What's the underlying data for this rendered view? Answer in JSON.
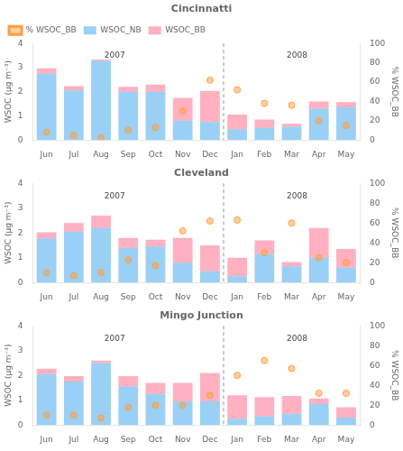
{
  "chart_data": [
    {
      "type": "bar",
      "title": "Cincinnatti",
      "stacked": true,
      "grid": false,
      "legend": "upper left",
      "categories": [
        "Jun",
        "Jul",
        "Aug",
        "Sep",
        "Oct",
        "Nov",
        "Dec",
        "Jan",
        "Feb",
        "Mar",
        "Apr",
        "May"
      ],
      "y_label": "WSOC (μg m⁻³)",
      "y2_label": "% WSOC_BB",
      "ylim": [
        0,
        4
      ],
      "yticks": [
        0,
        1,
        2,
        3,
        4
      ],
      "y2lim": [
        0,
        100
      ],
      "y2ticks": [
        0,
        20,
        40,
        60,
        80,
        100
      ],
      "series": [
        {
          "name": "WSOC_NB",
          "type": "bar",
          "values": [
            2.75,
            2.05,
            3.28,
            2.0,
            2.0,
            0.8,
            0.75,
            0.45,
            0.5,
            0.55,
            1.3,
            1.35
          ]
        },
        {
          "name": "WSOC_BB",
          "type": "bar",
          "values": [
            0.22,
            0.18,
            0.05,
            0.2,
            0.3,
            0.95,
            1.28,
            0.6,
            0.35,
            0.12,
            0.3,
            0.22
          ]
        },
        {
          "name": "% WSOC_BB",
          "type": "scatter",
          "axis": "y2",
          "marker": "circle",
          "values": [
            8,
            5,
            2,
            10,
            13,
            30,
            62,
            52,
            38,
            36,
            20,
            15
          ]
        }
      ],
      "annotations": [
        {
          "text": "2007",
          "x": 2.5,
          "y": 3.65
        },
        {
          "text": "2008",
          "x": 9.2,
          "y": 3.65
        },
        {
          "type": "vline",
          "x": 6.5,
          "line_style": "dashed"
        }
      ]
    },
    {
      "type": "bar",
      "title": "Cleveland",
      "stacked": true,
      "grid": false,
      "categories": [
        "Jun",
        "Jul",
        "Aug",
        "Sep",
        "Oct",
        "Nov",
        "Dec",
        "Jan",
        "Feb",
        "Mar",
        "Apr",
        "May"
      ],
      "y_label": "WSOC (μg m⁻³)",
      "y2_label": "% WSOC_BB",
      "ylim": [
        0,
        4
      ],
      "yticks": [
        0,
        1,
        2,
        3,
        4
      ],
      "y2lim": [
        0,
        100
      ],
      "y2ticks": [
        0,
        20,
        40,
        60,
        80,
        100
      ],
      "series": [
        {
          "name": "WSOC_NB",
          "type": "bar",
          "values": [
            1.78,
            2.05,
            2.2,
            1.4,
            1.45,
            0.8,
            0.45,
            0.25,
            1.15,
            0.65,
            1.0,
            0.6
          ]
        },
        {
          "name": "WSOC_BB",
          "type": "bar",
          "values": [
            0.25,
            0.35,
            0.5,
            0.4,
            0.28,
            1.0,
            1.05,
            0.75,
            0.55,
            0.18,
            1.2,
            0.75
          ]
        },
        {
          "name": "% WSOC_BB",
          "type": "scatter",
          "axis": "y2",
          "marker": "circle",
          "values": [
            10,
            7,
            10,
            23,
            17,
            52,
            62,
            63,
            30,
            60,
            25,
            20
          ]
        }
      ],
      "annotations": [
        {
          "text": "2007",
          "x": 2.5,
          "y": 3.65
        },
        {
          "text": "2008",
          "x": 9.2,
          "y": 3.65
        },
        {
          "type": "vline",
          "x": 6.5,
          "line_style": "dashed"
        }
      ]
    },
    {
      "type": "bar",
      "title": "Mingo Junction",
      "stacked": true,
      "grid": false,
      "categories": [
        "Jun",
        "Jul",
        "Aug",
        "Sep",
        "Oct",
        "Nov",
        "Dec",
        "Jan",
        "Feb",
        "Mar",
        "Apr",
        "May"
      ],
      "y_label": "WSOC (μg m⁻³)",
      "y2_label": "% WSOC_BB",
      "ylim": [
        0,
        4
      ],
      "yticks": [
        0,
        1,
        2,
        3,
        4
      ],
      "y2lim": [
        0,
        100
      ],
      "y2ticks": [
        0,
        20,
        40,
        60,
        80,
        100
      ],
      "series": [
        {
          "name": "WSOC_NB",
          "type": "bar",
          "values": [
            2.05,
            1.75,
            2.5,
            1.55,
            1.25,
            0.95,
            0.95,
            0.25,
            0.35,
            0.45,
            0.85,
            0.3
          ]
        },
        {
          "name": "WSOC_BB",
          "type": "bar",
          "values": [
            0.22,
            0.22,
            0.1,
            0.42,
            0.45,
            0.75,
            1.15,
            0.95,
            0.78,
            0.72,
            0.22,
            0.42
          ]
        },
        {
          "name": "% WSOC_BB",
          "type": "scatter",
          "axis": "y2",
          "marker": "circle",
          "values": [
            10,
            10,
            7,
            18,
            20,
            20,
            30,
            50,
            65,
            57,
            32,
            32
          ]
        }
      ],
      "annotations": [
        {
          "text": "2007",
          "x": 2.5,
          "y": 3.65
        },
        {
          "text": "2008",
          "x": 9.2,
          "y": 3.65
        },
        {
          "type": "vline",
          "x": 6.5,
          "line_style": "dashed"
        }
      ]
    }
  ]
}
